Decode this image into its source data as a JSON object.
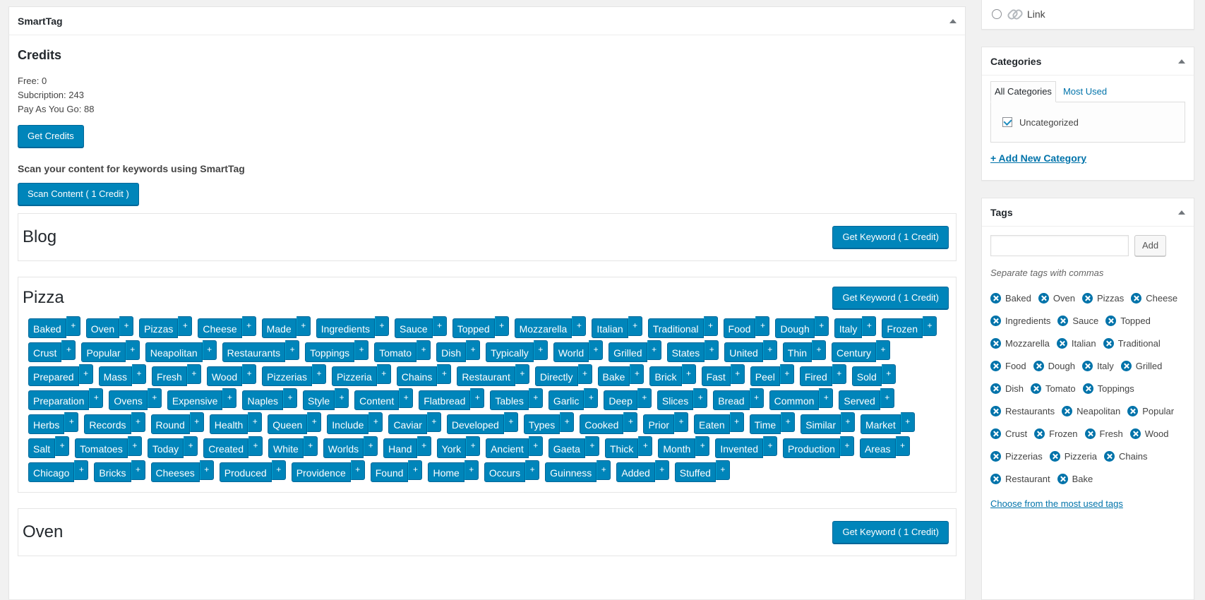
{
  "smarttag": {
    "title": "SmartTag",
    "credits_title": "Credits",
    "free": "Free: 0",
    "subscription": "Subcription: 243",
    "payg": "Pay As You Go: 88",
    "get_credits": "Get Credits",
    "scan_label": "Scan your content for keywords using SmartTag",
    "scan_button": "Scan Content ( 1 Credit )",
    "panels": [
      {
        "title": "Blog",
        "button": "Get Keyword ( 1 Credit)"
      },
      {
        "title": "Pizza",
        "button": "Get Keyword ( 1 Credit)"
      },
      {
        "title": "Oven",
        "button": "Get Keyword ( 1 Credit)"
      }
    ],
    "keywords": [
      "Baked",
      "Oven",
      "Pizzas",
      "Cheese",
      "Made",
      "Ingredients",
      "Sauce",
      "Topped",
      "Mozzarella",
      "Italian",
      "Traditional",
      "Food",
      "Dough",
      "Italy",
      "Frozen",
      "Crust",
      "Popular",
      "Neapolitan",
      "Restaurants",
      "Toppings",
      "Tomato",
      "Dish",
      "Typically",
      "World",
      "Grilled",
      "States",
      "United",
      "Thin",
      "Century",
      "Prepared",
      "Mass",
      "Fresh",
      "Wood",
      "Pizzerias",
      "Pizzeria",
      "Chains",
      "Restaurant",
      "Directly",
      "Bake",
      "Brick",
      "Fast",
      "Peel",
      "Fired",
      "Sold",
      "Preparation",
      "Ovens",
      "Expensive",
      "Naples",
      "Style",
      "Content",
      "Flatbread",
      "Tables",
      "Garlic",
      "Deep",
      "Slices",
      "Bread",
      "Common",
      "Served",
      "Herbs",
      "Records",
      "Round",
      "Health",
      "Queen",
      "Include",
      "Caviar",
      "Developed",
      "Types",
      "Cooked",
      "Prior",
      "Eaten",
      "Time",
      "Similar",
      "Market",
      "Salt",
      "Tomatoes",
      "Today",
      "Created",
      "White",
      "Worlds",
      "Hand",
      "York",
      "Ancient",
      "Gaeta",
      "Thick",
      "Month",
      "Invented",
      "Production",
      "Areas",
      "Chicago",
      "Bricks",
      "Cheeses",
      "Produced",
      "Providence",
      "Found",
      "Home",
      "Occurs",
      "Guinness",
      "Added",
      "Stuffed"
    ],
    "plus": "+"
  },
  "format": {
    "label": "Link"
  },
  "categories": {
    "title": "Categories",
    "tab_all": "All Categories",
    "tab_most": "Most Used",
    "item": "Uncategorized",
    "add_new": "+ Add New Category"
  },
  "tags": {
    "title": "Tags",
    "add_button": "Add",
    "howto": "Separate tags with commas",
    "list": [
      "Baked",
      "Oven",
      "Pizzas",
      "Cheese",
      "Ingredients",
      "Sauce",
      "Topped",
      "Mozzarella",
      "Italian",
      "Traditional",
      "Food",
      "Dough",
      "Italy",
      "Grilled",
      "Dish",
      "Tomato",
      "Toppings",
      "Restaurants",
      "Neapolitan",
      "Popular",
      "Crust",
      "Frozen",
      "Fresh",
      "Wood",
      "Pizzerias",
      "Pizzeria",
      "Chains",
      "Restaurant",
      "Bake"
    ],
    "choose": "Choose from the most used tags"
  },
  "colors": {
    "primary": "#0085ba",
    "link": "#0073aa"
  }
}
